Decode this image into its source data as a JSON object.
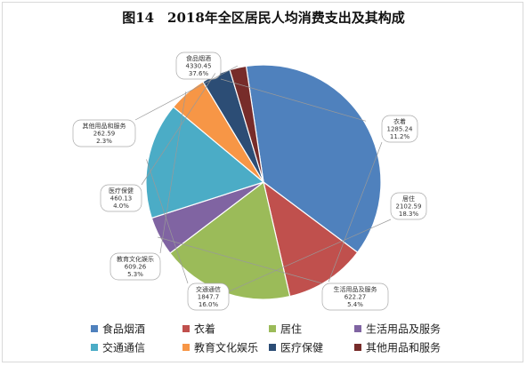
{
  "chart_data": {
    "type": "pie",
    "title": "图14　2018年全区居民人均消费支出及其构成",
    "legend_position": "bottom",
    "slices": [
      {
        "name": "食品烟酒",
        "value": 4330.45,
        "percent": "37.6%",
        "color": "#4f81bd"
      },
      {
        "name": "衣着",
        "value": 1285.24,
        "percent": "11.2%",
        "color": "#c0504d"
      },
      {
        "name": "居住",
        "value": 2102.59,
        "percent": "18.3%",
        "color": "#9bbb59"
      },
      {
        "name": "生活用品及服务",
        "value": 622.27,
        "percent": "5.4%",
        "color": "#8064a2"
      },
      {
        "name": "交通通信",
        "value": 1847.7,
        "percent": "16.0%",
        "color": "#4bacc6"
      },
      {
        "name": "教育文化娱乐",
        "value": 609.26,
        "percent": "5.3%",
        "color": "#f79646"
      },
      {
        "name": "医疗保健",
        "value": 460.13,
        "percent": "4.0%",
        "color": "#2c4d75"
      },
      {
        "name": "其他用品和服务",
        "value": 262.59,
        "percent": "2.3%",
        "color": "#772c2a"
      }
    ]
  }
}
